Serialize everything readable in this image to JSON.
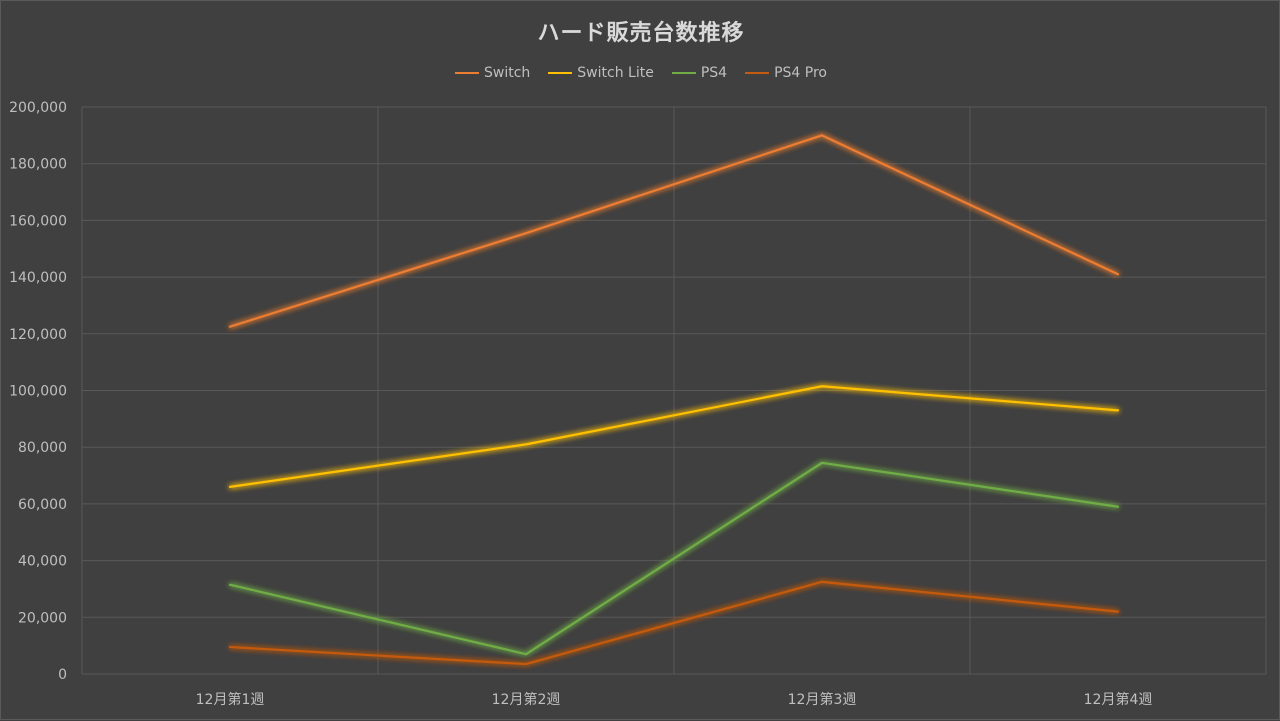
{
  "chart_data": {
    "type": "line",
    "title": "ハード販売台数推移",
    "categories": [
      "12月第1週",
      "12月第2週",
      "12月第3週",
      "12月第4週"
    ],
    "ylim": [
      0,
      200000
    ],
    "y_ticks": [
      "0",
      "20,000",
      "40,000",
      "60,000",
      "80,000",
      "100,000",
      "120,000",
      "140,000",
      "160,000",
      "180,000",
      "200,000"
    ],
    "y_tick_values": [
      0,
      20000,
      40000,
      60000,
      80000,
      100000,
      120000,
      140000,
      160000,
      180000,
      200000
    ],
    "grid": true,
    "legend_position": "top",
    "series": [
      {
        "name": "Switch",
        "color": "#ed7d31",
        "values": [
          122500,
          155500,
          190000,
          141000
        ]
      },
      {
        "name": "Switch Lite",
        "color": "#ffc000",
        "values": [
          66000,
          81000,
          101500,
          93000
        ]
      },
      {
        "name": "PS4",
        "color": "#70ad47",
        "values": [
          31500,
          7000,
          74500,
          59000
        ]
      },
      {
        "name": "PS4 Pro",
        "color": "#c55a11",
        "values": [
          9500,
          3500,
          32500,
          22000
        ]
      }
    ]
  },
  "background": "#404040",
  "grid_color": "#595959"
}
